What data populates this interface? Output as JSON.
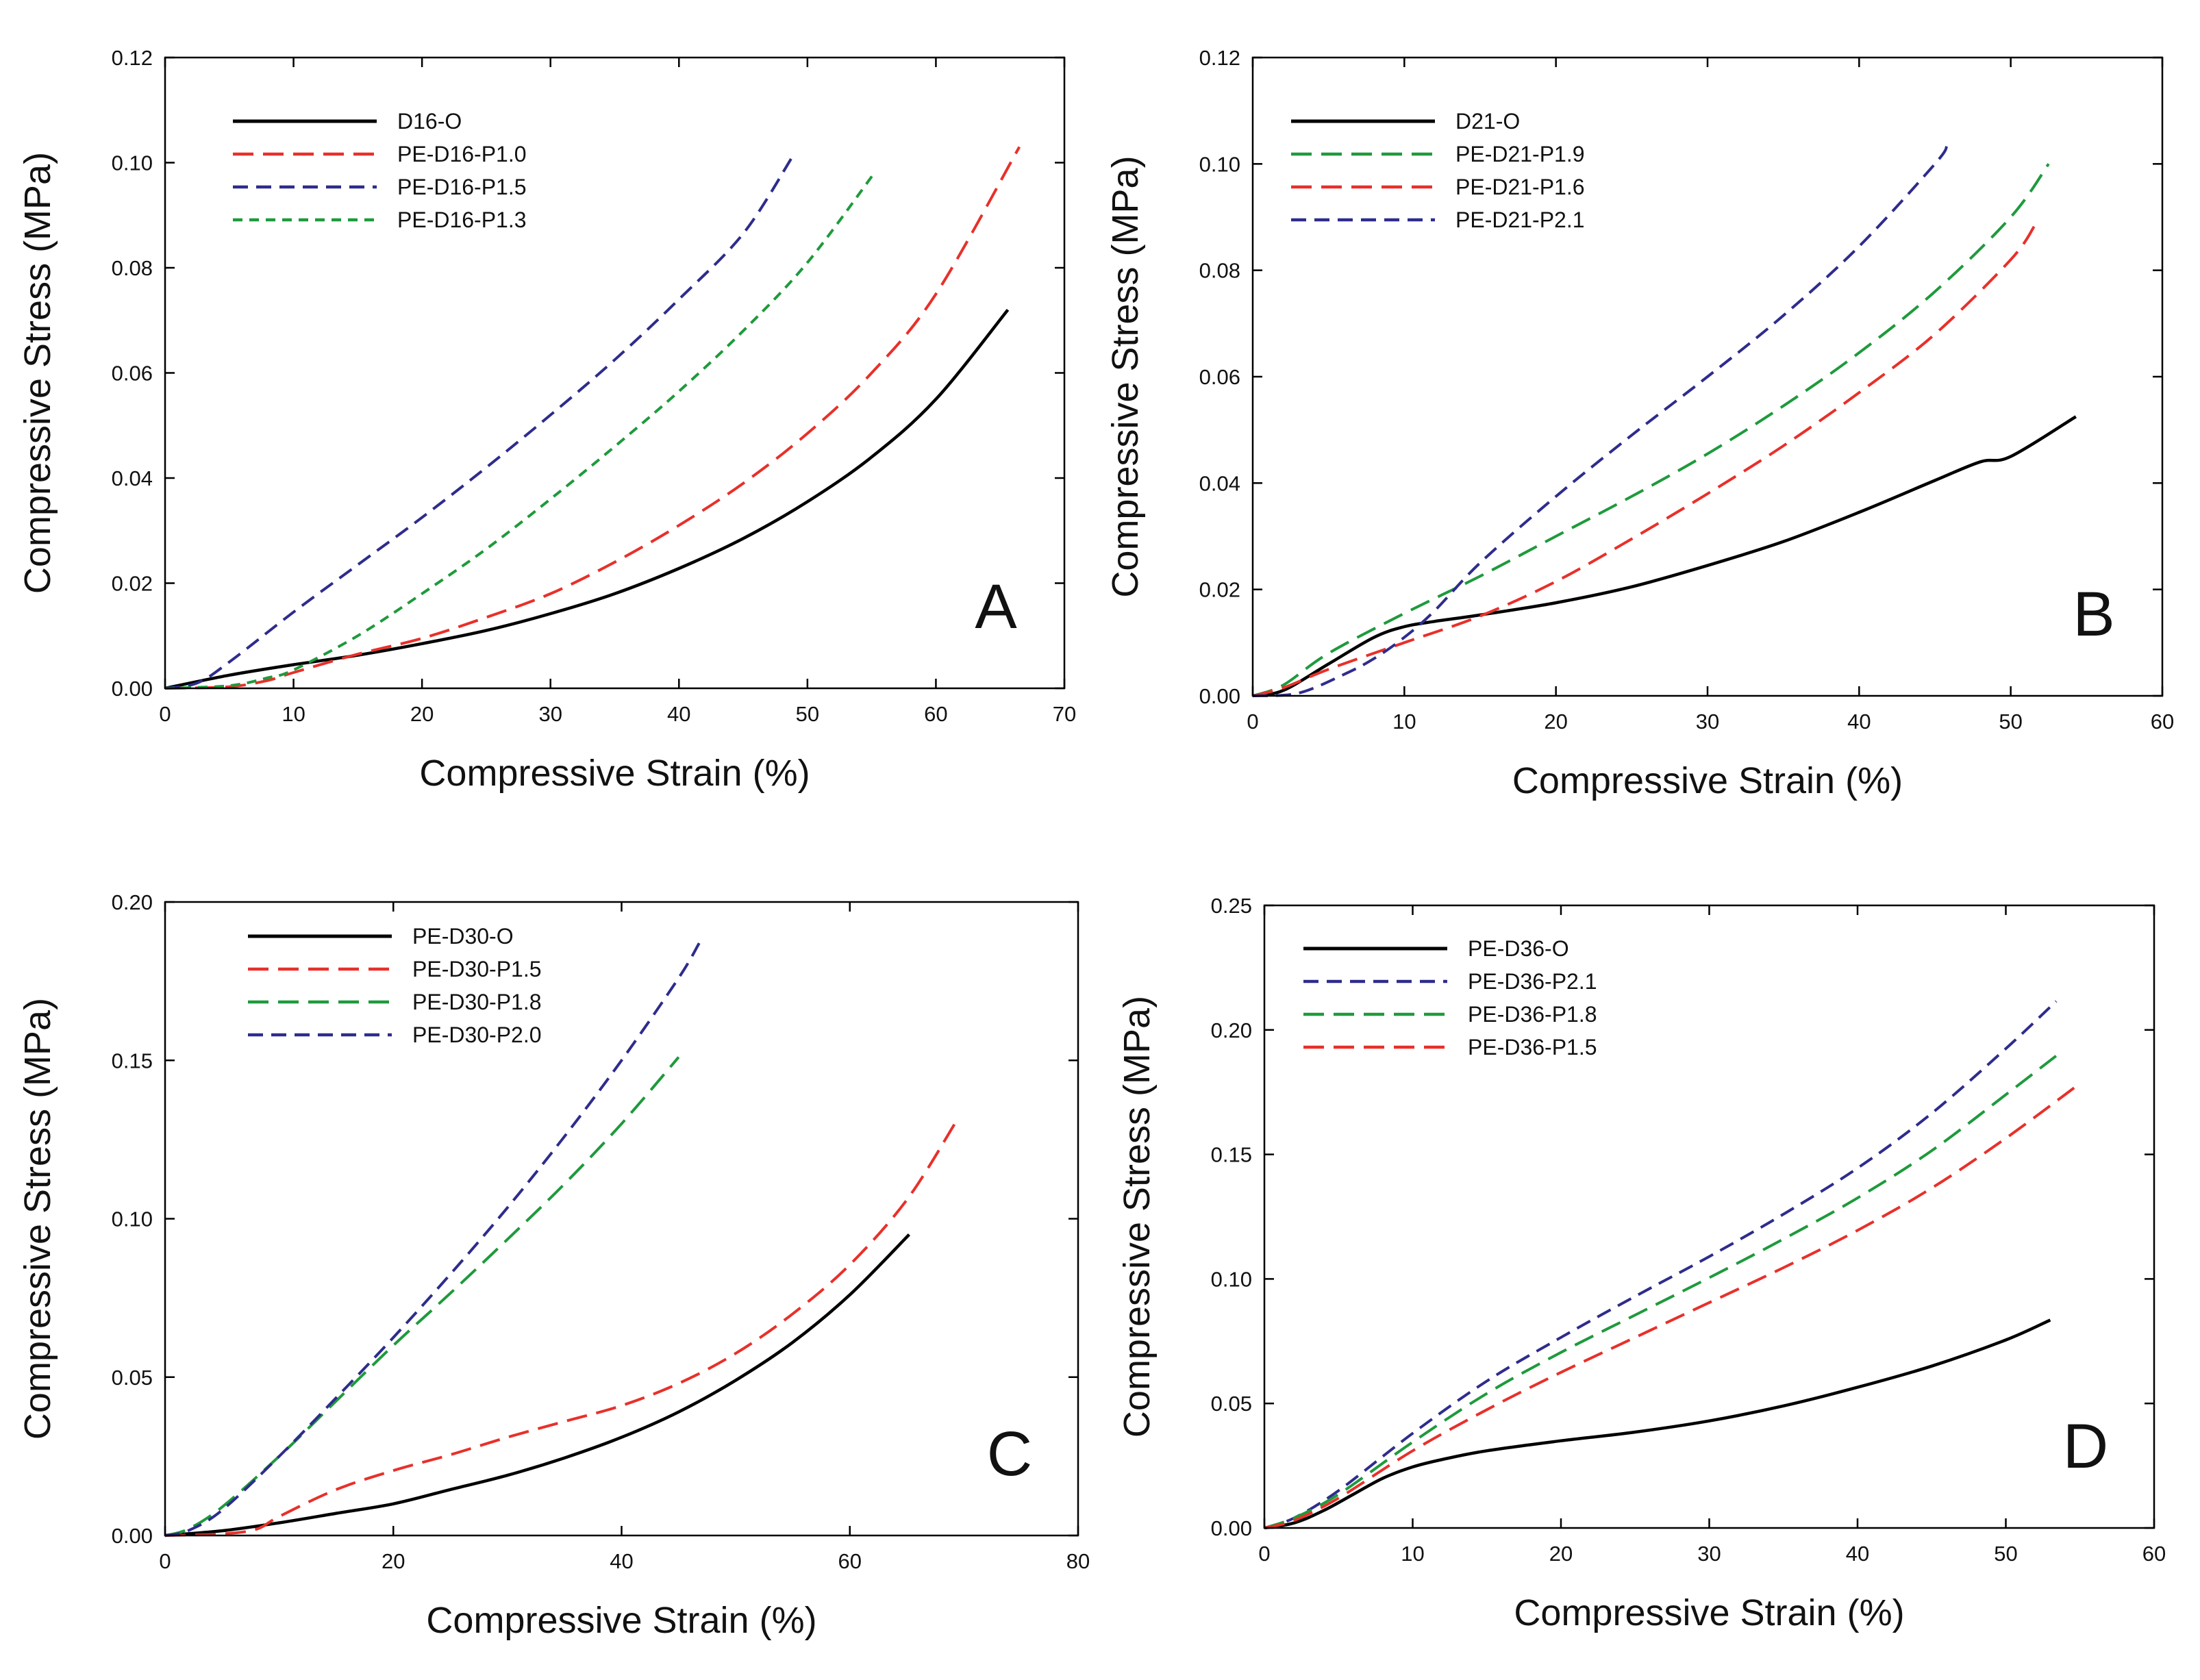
{
  "chart_data": [
    {
      "panel": "A",
      "type": "line",
      "xlabel": "Compressive Strain (%)",
      "ylabel": "Compressive Stress (MPa)",
      "xlim": [
        0,
        70
      ],
      "ylim": [
        0,
        0.12
      ],
      "xticks": [
        0,
        10,
        20,
        30,
        40,
        50,
        60,
        70
      ],
      "yticks": [
        0,
        0.02,
        0.04,
        0.06,
        0.08,
        0.1,
        0.12
      ],
      "xtick_labels": [
        "0",
        "10",
        "20",
        "30",
        "40",
        "50",
        "60",
        "70"
      ],
      "ytick_labels": [
        "0.00",
        "0.02",
        "0.04",
        "0.06",
        "0.08",
        "0.10",
        "0.12"
      ],
      "grid": false,
      "legend_position": "top-left",
      "series": [
        {
          "name": "D16-O",
          "color": "#000000",
          "dash": "solid",
          "x": [
            0,
            5,
            10,
            15,
            20,
            25,
            30,
            35,
            40,
            45,
            50,
            55,
            60,
            65.6
          ],
          "y": [
            0,
            0.0025,
            0.0045,
            0.0063,
            0.0085,
            0.011,
            0.0142,
            0.018,
            0.0228,
            0.0285,
            0.0355,
            0.044,
            0.055,
            0.072
          ]
        },
        {
          "name": "PE-D16-P1.0",
          "color": "#e8302a",
          "dash": "long",
          "x": [
            0,
            5,
            8,
            10,
            15,
            20,
            25,
            30,
            35,
            40,
            45,
            50,
            55,
            60,
            66.5
          ],
          "y": [
            0,
            0.0003,
            0.0015,
            0.003,
            0.0065,
            0.0095,
            0.0135,
            0.018,
            0.024,
            0.031,
            0.039,
            0.0485,
            0.06,
            0.075,
            0.103
          ]
        },
        {
          "name": "PE-D16-P1.5",
          "color": "#2e2c8c",
          "dash": "medium",
          "x": [
            0,
            2.5,
            5,
            10,
            15,
            20,
            25,
            30,
            35,
            40,
            45,
            48.8
          ],
          "y": [
            0,
            0.001,
            0.005,
            0.0145,
            0.0235,
            0.0325,
            0.042,
            0.052,
            0.0625,
            0.074,
            0.0865,
            0.101
          ]
        },
        {
          "name": "PE-D16-P1.3",
          "color": "#1e9a3c",
          "dash": "short",
          "x": [
            0,
            5,
            8,
            10,
            15,
            20,
            25,
            30,
            35,
            40,
            45,
            50,
            55.2
          ],
          "y": [
            0,
            0.0005,
            0.002,
            0.0035,
            0.01,
            0.018,
            0.0265,
            0.036,
            0.046,
            0.0565,
            0.068,
            0.081,
            0.098
          ]
        }
      ],
      "panel_letter": "A"
    },
    {
      "panel": "B",
      "type": "line",
      "xlabel": "Compressive Strain (%)",
      "ylabel": "Compressive Stress (MPa)",
      "xlim": [
        0,
        60
      ],
      "ylim": [
        0,
        0.12
      ],
      "xticks": [
        0,
        10,
        20,
        30,
        40,
        50,
        60
      ],
      "yticks": [
        0,
        0.02,
        0.04,
        0.06,
        0.08,
        0.1,
        0.12
      ],
      "xtick_labels": [
        "0",
        "10",
        "20",
        "30",
        "40",
        "50",
        "60"
      ],
      "ytick_labels": [
        "0.00",
        "0.02",
        "0.04",
        "0.06",
        "0.08",
        "0.10",
        "0.12"
      ],
      "grid": false,
      "legend_position": "top-left",
      "series": [
        {
          "name": "D21-O",
          "color": "#000000",
          "dash": "solid",
          "x": [
            0,
            2,
            5,
            8,
            10,
            12,
            15,
            20,
            25,
            30,
            35,
            40,
            45,
            48,
            50,
            54.3
          ],
          "y": [
            0,
            0.001,
            0.006,
            0.011,
            0.013,
            0.014,
            0.0152,
            0.0175,
            0.0205,
            0.0245,
            0.029,
            0.0345,
            0.0405,
            0.044,
            0.045,
            0.0525
          ]
        },
        {
          "name": "PE-D21-P1.9",
          "color": "#1e9a3c",
          "dash": "long",
          "x": [
            0,
            2,
            5,
            10,
            15,
            20,
            25,
            30,
            35,
            40,
            45,
            50,
            52.5
          ],
          "y": [
            0,
            0.002,
            0.008,
            0.0155,
            0.0225,
            0.03,
            0.0375,
            0.0455,
            0.0545,
            0.0645,
            0.076,
            0.09,
            0.1
          ]
        },
        {
          "name": "PE-D21-P1.6",
          "color": "#e8302a",
          "dash": "long",
          "x": [
            0,
            2,
            5,
            10,
            15,
            20,
            25,
            30,
            35,
            40,
            45,
            50,
            51.6
          ],
          "y": [
            0,
            0.0015,
            0.005,
            0.01,
            0.015,
            0.0215,
            0.0295,
            0.038,
            0.047,
            0.057,
            0.068,
            0.082,
            0.0885
          ]
        },
        {
          "name": "PE-D21-P2.1",
          "color": "#2e2c8c",
          "dash": "medium",
          "x": [
            0,
            3,
            6,
            8,
            10,
            12,
            15,
            20,
            25,
            30,
            35,
            40,
            45,
            45.8
          ],
          "y": [
            0,
            0.0005,
            0.004,
            0.007,
            0.011,
            0.016,
            0.025,
            0.0375,
            0.049,
            0.06,
            0.0715,
            0.0845,
            0.1,
            0.1035
          ]
        }
      ],
      "panel_letter": "B"
    },
    {
      "panel": "C",
      "type": "line",
      "xlabel": "Compressive Strain (%)",
      "ylabel": "Compressive Stress (MPa)",
      "xlim": [
        0,
        80
      ],
      "ylim": [
        0,
        0.2
      ],
      "xticks": [
        0,
        20,
        40,
        60,
        80
      ],
      "yticks": [
        0,
        0.05,
        0.1,
        0.15,
        0.2
      ],
      "xtick_labels": [
        "0",
        "20",
        "40",
        "60",
        "80"
      ],
      "ytick_labels": [
        "0.00",
        "0.05",
        "0.10",
        "0.15",
        "0.20"
      ],
      "grid": false,
      "legend_position": "top-left",
      "series": [
        {
          "name": "PE-D30-O",
          "color": "#000000",
          "dash": "solid",
          "x": [
            0,
            5,
            10,
            15,
            20,
            25,
            30,
            35,
            40,
            45,
            50,
            55,
            60,
            65.2
          ],
          "y": [
            0,
            0.0015,
            0.004,
            0.007,
            0.01,
            0.0145,
            0.019,
            0.0245,
            0.031,
            0.039,
            0.049,
            0.061,
            0.076,
            0.095
          ]
        },
        {
          "name": "PE-D30-P1.5",
          "color": "#e8302a",
          "dash": "long",
          "x": [
            0,
            5,
            8,
            10,
            15,
            20,
            25,
            30,
            35,
            40,
            45,
            50,
            55,
            60,
            65,
            69.2
          ],
          "y": [
            0,
            0.0005,
            0.002,
            0.006,
            0.0145,
            0.0205,
            0.0255,
            0.031,
            0.036,
            0.041,
            0.048,
            0.0575,
            0.07,
            0.0855,
            0.106,
            0.13
          ]
        },
        {
          "name": "PE-D30-P1.8",
          "color": "#1e9a3c",
          "dash": "long",
          "x": [
            0,
            2,
            5,
            10,
            15,
            20,
            25,
            30,
            35,
            40,
            45
          ],
          "y": [
            0,
            0.002,
            0.009,
            0.025,
            0.0425,
            0.06,
            0.0765,
            0.0935,
            0.111,
            0.13,
            0.151
          ]
        },
        {
          "name": "PE-D30-P2.0",
          "color": "#2e2c8c",
          "dash": "medium",
          "x": [
            0,
            2,
            5,
            10,
            15,
            20,
            25,
            30,
            35,
            40,
            45,
            46.8
          ],
          "y": [
            0,
            0.0015,
            0.008,
            0.025,
            0.0435,
            0.0625,
            0.0825,
            0.1035,
            0.126,
            0.15,
            0.176,
            0.187
          ]
        }
      ],
      "panel_letter": "C"
    },
    {
      "panel": "D",
      "type": "line",
      "xlabel": "Compressive Strain (%)",
      "ylabel": "Compressive Stress (MPa)",
      "xlim": [
        0,
        60
      ],
      "ylim": [
        0,
        0.25
      ],
      "xticks": [
        0,
        10,
        20,
        30,
        40,
        50,
        60
      ],
      "yticks": [
        0,
        0.05,
        0.1,
        0.15,
        0.2,
        0.25
      ],
      "xtick_labels": [
        "0",
        "10",
        "20",
        "30",
        "40",
        "50",
        "60"
      ],
      "ytick_labels": [
        "0.00",
        "0.05",
        "0.10",
        "0.15",
        "0.20",
        "0.25"
      ],
      "grid": false,
      "legend_position": "top-left",
      "series": [
        {
          "name": "PE-D36-O",
          "color": "#000000",
          "dash": "solid",
          "x": [
            0,
            2,
            4,
            6,
            8,
            10,
            12,
            15,
            20,
            25,
            30,
            35,
            40,
            45,
            50,
            53
          ],
          "y": [
            0,
            0.002,
            0.007,
            0.0135,
            0.02,
            0.0245,
            0.0275,
            0.031,
            0.035,
            0.0385,
            0.043,
            0.049,
            0.0565,
            0.065,
            0.0755,
            0.0835
          ]
        },
        {
          "name": "PE-D36-P2.1",
          "color": "#2e2c8c",
          "dash": "medium",
          "x": [
            0,
            2,
            5,
            10,
            15,
            20,
            25,
            30,
            35,
            40,
            45,
            50,
            53.4
          ],
          "y": [
            0,
            0.004,
            0.015,
            0.038,
            0.059,
            0.0765,
            0.093,
            0.109,
            0.126,
            0.1445,
            0.1665,
            0.1925,
            0.2115
          ]
        },
        {
          "name": "PE-D36-P1.8",
          "color": "#1e9a3c",
          "dash": "long",
          "x": [
            0,
            2,
            5,
            10,
            15,
            20,
            25,
            30,
            35,
            40,
            45,
            50,
            53.6
          ],
          "y": [
            0,
            0.004,
            0.0135,
            0.0345,
            0.054,
            0.0705,
            0.0855,
            0.1005,
            0.116,
            0.1325,
            0.1515,
            0.174,
            0.1905
          ]
        },
        {
          "name": "PE-D36-P1.5",
          "color": "#e8302a",
          "dash": "long",
          "x": [
            0,
            2,
            5,
            10,
            15,
            20,
            25,
            30,
            35,
            40,
            45,
            50,
            55
          ],
          "y": [
            0,
            0.003,
            0.012,
            0.031,
            0.0475,
            0.0625,
            0.0765,
            0.0905,
            0.1045,
            0.1195,
            0.1365,
            0.1565,
            0.1785
          ]
        }
      ],
      "panel_letter": "D"
    }
  ]
}
